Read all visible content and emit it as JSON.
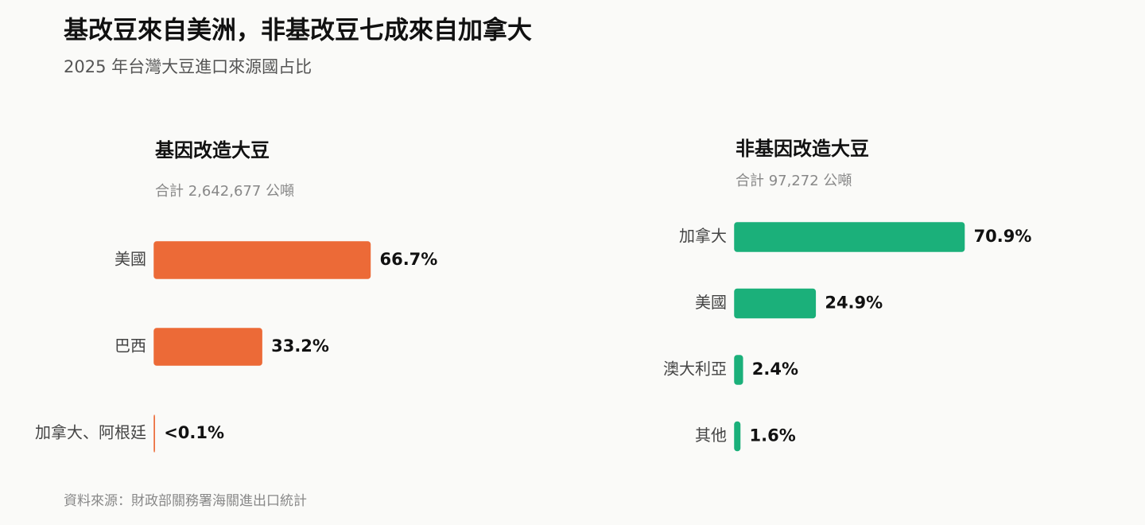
{
  "title": "基改豆來自美洲，非基改豆七成來自加拿大",
  "subtitle": "2025 年台灣大豆進口來源國占比",
  "source": "資料來源：財政部關務署海關進出口統計",
  "chart_data": [
    {
      "type": "bar",
      "orientation": "horizontal",
      "title": "基因改造大豆",
      "subtitle": "合計 2,642,677 公噸",
      "categories": [
        "美國",
        "巴西",
        "加拿大、阿根廷"
      ],
      "values": [
        66.7,
        33.2,
        0.05
      ],
      "value_labels": [
        "66.7%",
        "33.2%",
        "<0.1%"
      ],
      "color": "#ec6a37"
    },
    {
      "type": "bar",
      "orientation": "horizontal",
      "title": "非基因改造大豆",
      "subtitle": "合計 97,272 公噸",
      "categories": [
        "加拿大",
        "美國",
        "澳大利亞",
        "其他"
      ],
      "values": [
        70.9,
        24.9,
        2.4,
        1.6
      ],
      "value_labels": [
        "70.9%",
        "24.9%",
        "2.4%",
        "1.6%"
      ],
      "color": "#1bb07a"
    }
  ]
}
